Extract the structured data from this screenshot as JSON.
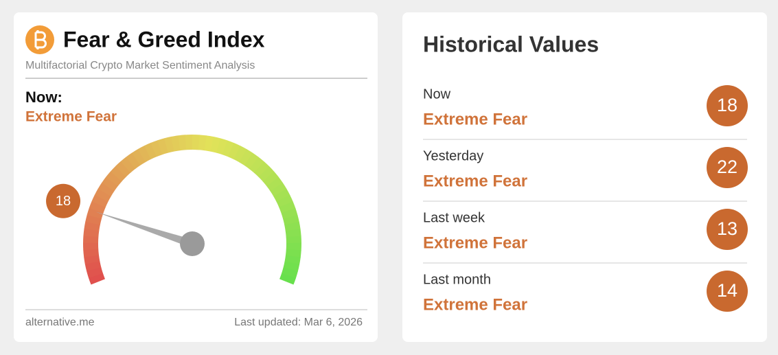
{
  "left_card": {
    "title": "Fear & Greed Index",
    "subtitle": "Multifactorial Crypto Market Sentiment Analysis",
    "now_label": "Now:",
    "classification": "Extreme Fear",
    "gauge": {
      "value": 18,
      "lim": [
        0,
        100
      ]
    },
    "source": "alternative.me",
    "last_updated": "Last updated: Mar 6, 2026"
  },
  "right_card": {
    "title": "Historical Values",
    "rows": [
      {
        "label": "Now",
        "classification": "Extreme Fear",
        "value": 18
      },
      {
        "label": "Yesterday",
        "classification": "Extreme Fear",
        "value": 22
      },
      {
        "label": "Last week",
        "classification": "Extreme Fear",
        "value": 13
      },
      {
        "label": "Last month",
        "classification": "Extreme Fear",
        "value": 14
      }
    ]
  }
}
